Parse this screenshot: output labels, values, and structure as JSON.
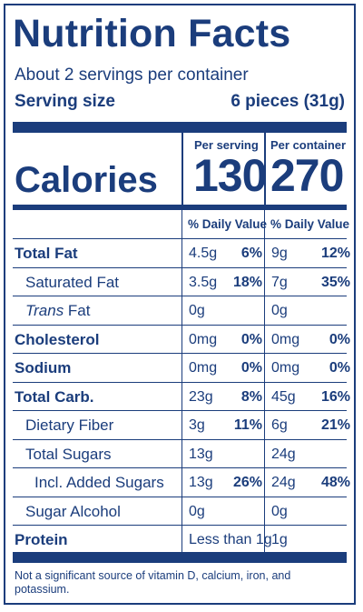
{
  "title": "Nutrition Facts",
  "servings_per_container": "About 2 servings per container",
  "serving_size_label": "Serving size",
  "serving_size_value": "6 pieces (31g)",
  "columns": {
    "per_serving": "Per serving",
    "per_container": "Per container"
  },
  "calories": {
    "label": "Calories",
    "per_serving": "130",
    "per_container": "270"
  },
  "daily_value_header": "% Daily Value",
  "nutrients": [
    {
      "name": "Total Fat",
      "style": "bold",
      "serving_amount": "4.5g",
      "serving_dv": "6%",
      "container_amount": "9g",
      "container_dv": "12%"
    },
    {
      "name": "Saturated Fat",
      "style": "indent1",
      "serving_amount": "3.5g",
      "serving_dv": "18%",
      "container_amount": "7g",
      "container_dv": "35%"
    },
    {
      "name_italic": "Trans",
      "name_rest": " Fat",
      "style": "indent1",
      "serving_amount": "0g",
      "serving_dv": "",
      "container_amount": "0g",
      "container_dv": ""
    },
    {
      "name": "Cholesterol",
      "style": "bold",
      "serving_amount": "0mg",
      "serving_dv": "0%",
      "container_amount": "0mg",
      "container_dv": "0%"
    },
    {
      "name": "Sodium",
      "style": "bold",
      "serving_amount": "0mg",
      "serving_dv": "0%",
      "container_amount": "0mg",
      "container_dv": "0%"
    },
    {
      "name": "Total Carb.",
      "style": "bold",
      "serving_amount": "23g",
      "serving_dv": "8%",
      "container_amount": "45g",
      "container_dv": "16%"
    },
    {
      "name": "Dietary Fiber",
      "style": "indent1",
      "serving_amount": "3g",
      "serving_dv": "11%",
      "container_amount": "6g",
      "container_dv": "21%"
    },
    {
      "name": "Total Sugars",
      "style": "indent1",
      "serving_amount": "13g",
      "serving_dv": "",
      "container_amount": "24g",
      "container_dv": ""
    },
    {
      "name": "Incl. Added Sugars",
      "style": "indent2",
      "serving_amount": "13g",
      "serving_dv": "26%",
      "container_amount": "24g",
      "container_dv": "48%"
    },
    {
      "name": "Sugar Alcohol",
      "style": "indent1",
      "serving_amount": "0g",
      "serving_dv": "",
      "container_amount": "0g",
      "container_dv": ""
    },
    {
      "name": "Protein",
      "style": "bold",
      "serving_amount": "Less than 1g",
      "serving_dv": "",
      "container_amount": "1g",
      "container_dv": ""
    }
  ],
  "footnote": "Not a significant source of vitamin D, calcium, iron, and potassium.",
  "colors": {
    "ink": "#1b3d7c",
    "background": "#ffffff"
  }
}
